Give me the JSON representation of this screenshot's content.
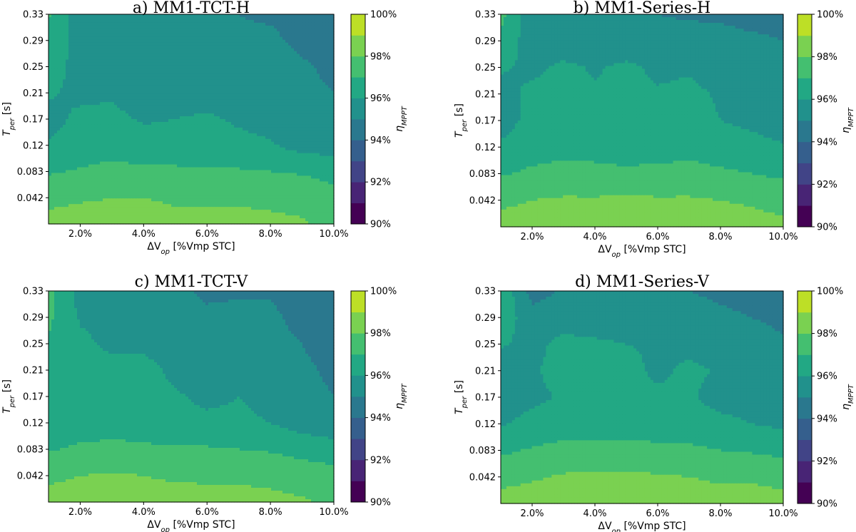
{
  "chart_data": [
    {
      "type": "heatmap",
      "title": "a) MM1-TCT-H",
      "xlabel": "ΔV",
      "xlabel_sub": "op",
      "xlabel_unit": " [%Vmp STC]",
      "ylabel": "T",
      "ylabel_sub": "per",
      "ylabel_unit": " [s]",
      "x": [
        1,
        2,
        3,
        4,
        5,
        6,
        7,
        8,
        9,
        10
      ],
      "y": [
        0.021,
        0.042,
        0.083,
        0.12,
        0.17,
        0.21,
        0.25,
        0.29,
        0.33
      ],
      "x_ticks": [
        {
          "v": 2,
          "label": "2.0%"
        },
        {
          "v": 4,
          "label": "4.0%"
        },
        {
          "v": 6,
          "label": "6.0%"
        },
        {
          "v": 8,
          "label": "8.0%"
        },
        {
          "v": 10,
          "label": "10.0%"
        }
      ],
      "y_ticks": [
        "0.042",
        "0.083",
        "0.12",
        "0.17",
        "0.21",
        "0.25",
        "0.29",
        "0.33"
      ],
      "z": [
        [
          98.4,
          98.4,
          98.3,
          98.3,
          98.2,
          98.2,
          98.2,
          98.2,
          98.1,
          97.7
        ],
        [
          97.7,
          97.9,
          98.0,
          98.0,
          97.9,
          97.9,
          97.9,
          97.8,
          97.7,
          97.4
        ],
        [
          96.9,
          97.1,
          97.3,
          97.2,
          97.2,
          97.1,
          97.1,
          97.0,
          96.9,
          96.6
        ],
        [
          96.1,
          96.4,
          96.6,
          96.4,
          96.3,
          96.3,
          96.2,
          96.1,
          95.6,
          95.6
        ],
        [
          95.7,
          96.2,
          96.2,
          95.9,
          96.0,
          96.1,
          95.9,
          95.7,
          95.4,
          95.1
        ],
        [
          96.1,
          95.8,
          95.9,
          95.6,
          95.7,
          95.7,
          95.8,
          95.8,
          95.3,
          95.0
        ],
        [
          96.4,
          95.7,
          95.7,
          95.8,
          95.5,
          95.5,
          95.7,
          95.8,
          95.2,
          94.7
        ],
        [
          96.9,
          95.4,
          95.3,
          95.3,
          95.2,
          95.2,
          95.2,
          95.3,
          94.6,
          94.4
        ],
        [
          97.1,
          95.4,
          95.3,
          95.2,
          95.1,
          95.1,
          95.0,
          94.8,
          94.4,
          94.2
        ]
      ],
      "colorbar": {
        "label": "η",
        "label_sub": "MPPT",
        "range": [
          90,
          100
        ],
        "ticks": [
          "90%",
          "92%",
          "94%",
          "96%",
          "98%",
          "100%"
        ]
      }
    },
    {
      "type": "heatmap",
      "title": "b) MM1-Series-H",
      "xlabel": "ΔV",
      "xlabel_sub": "op",
      "xlabel_unit": " [%Vmp STC]",
      "ylabel": "T",
      "ylabel_sub": "per",
      "ylabel_unit": " [s]",
      "x": [
        1,
        2,
        3,
        4,
        5,
        6,
        7,
        8,
        9,
        10
      ],
      "y": [
        0.021,
        0.042,
        0.083,
        0.12,
        0.17,
        0.21,
        0.25,
        0.29,
        0.33
      ],
      "x_ticks": [
        {
          "v": 2,
          "label": "2.0%"
        },
        {
          "v": 4,
          "label": "4.0%"
        },
        {
          "v": 6,
          "label": "6.0%"
        },
        {
          "v": 8,
          "label": "8.0%"
        },
        {
          "v": 10,
          "label": "10.0%"
        }
      ],
      "y_ticks": [
        "0.042",
        "0.083",
        "0.12",
        "0.17",
        "0.21",
        "0.25",
        "0.29",
        "0.33"
      ],
      "z": [
        [
          98.4,
          98.4,
          98.4,
          98.4,
          98.4,
          98.4,
          98.3,
          98.3,
          98.3,
          98.2
        ],
        [
          97.8,
          98.0,
          98.1,
          98.1,
          98.2,
          98.1,
          98.1,
          98.0,
          97.9,
          97.7
        ],
        [
          96.9,
          97.2,
          97.4,
          97.3,
          97.2,
          97.3,
          97.4,
          97.2,
          97.0,
          96.8
        ],
        [
          96.1,
          96.5,
          96.6,
          96.6,
          96.5,
          96.5,
          96.6,
          96.4,
          96.3,
          96.1
        ],
        [
          95.7,
          96.2,
          96.3,
          96.2,
          96.2,
          96.2,
          96.3,
          96.0,
          95.8,
          95.5
        ],
        [
          95.7,
          96.2,
          96.3,
          96.1,
          96.3,
          96.1,
          96.2,
          95.9,
          95.6,
          95.4
        ],
        [
          96.1,
          95.8,
          96.2,
          95.9,
          96.2,
          95.8,
          95.9,
          95.6,
          95.5,
          95.3
        ],
        [
          96.8,
          95.4,
          95.4,
          95.4,
          95.3,
          95.3,
          95.3,
          95.2,
          95.1,
          95.0
        ],
        [
          97.3,
          95.3,
          95.2,
          95.1,
          95.1,
          95.0,
          94.9,
          94.9,
          94.8,
          94.8
        ]
      ],
      "colorbar": {
        "label": "η",
        "label_sub": "MPPT",
        "range": [
          90,
          100
        ],
        "ticks": [
          "90%",
          "92%",
          "94%",
          "96%",
          "98%",
          "100%"
        ]
      }
    },
    {
      "type": "heatmap",
      "title": "c) MM1-TCT-V",
      "xlabel": "ΔV",
      "xlabel_sub": "op",
      "xlabel_unit": " [%Vmp STC]",
      "ylabel": "T",
      "ylabel_sub": "per",
      "ylabel_unit": " [s]",
      "x": [
        1,
        2,
        3,
        4,
        5,
        6,
        7,
        8,
        9,
        10
      ],
      "y": [
        0.021,
        0.042,
        0.083,
        0.12,
        0.17,
        0.21,
        0.25,
        0.29,
        0.33
      ],
      "x_ticks": [
        {
          "v": 2,
          "label": "2.0%"
        },
        {
          "v": 4,
          "label": "4.0%"
        },
        {
          "v": 6,
          "label": "6.0%"
        },
        {
          "v": 8,
          "label": "8.0%"
        },
        {
          "v": 10,
          "label": "10.0%"
        }
      ],
      "y_ticks": [
        "0.042",
        "0.083",
        "0.12",
        "0.17",
        "0.21",
        "0.25",
        "0.29",
        "0.33"
      ],
      "z": [
        [
          98.4,
          98.4,
          98.4,
          98.3,
          98.3,
          98.2,
          98.2,
          98.2,
          98.1,
          97.8
        ],
        [
          97.8,
          98.0,
          98.1,
          98.0,
          97.9,
          97.9,
          97.9,
          97.8,
          97.6,
          97.4
        ],
        [
          96.9,
          97.2,
          97.3,
          97.2,
          97.1,
          97.1,
          97.0,
          96.9,
          96.6,
          96.4
        ],
        [
          96.2,
          96.4,
          96.5,
          96.4,
          96.2,
          96.2,
          96.2,
          96.0,
          95.6,
          95.4
        ],
        [
          96.6,
          96.4,
          96.3,
          96.3,
          96.1,
          95.8,
          96.0,
          95.7,
          95.3,
          95.0
        ],
        [
          96.5,
          96.3,
          96.3,
          96.3,
          95.8,
          95.5,
          95.7,
          95.5,
          95.2,
          94.8
        ],
        [
          96.9,
          96.2,
          95.8,
          95.8,
          95.5,
          95.3,
          95.5,
          95.3,
          95.0,
          94.5
        ],
        [
          97.2,
          95.9,
          95.7,
          95.6,
          95.3,
          95.1,
          95.2,
          95.2,
          94.7,
          94.3
        ],
        [
          97.3,
          95.6,
          95.4,
          95.3,
          95.1,
          94.9,
          94.9,
          94.9,
          94.5,
          94.2
        ]
      ],
      "colorbar": {
        "label": "η",
        "label_sub": "MPPT",
        "range": [
          90,
          100
        ],
        "ticks": [
          "90%",
          "92%",
          "94%",
          "96%",
          "98%",
          "100%"
        ]
      }
    },
    {
      "type": "heatmap",
      "title": "d) MM1-Series-V",
      "xlabel": "ΔV",
      "xlabel_sub": "op",
      "xlabel_unit": " [%Vmp STC]",
      "ylabel": "T",
      "ylabel_sub": "per",
      "ylabel_unit": " [s]",
      "x": [
        1,
        2,
        3,
        4,
        5,
        6,
        7,
        8,
        9,
        10
      ],
      "y": [
        0.021,
        0.042,
        0.083,
        0.12,
        0.17,
        0.21,
        0.25,
        0.29,
        0.33
      ],
      "x_ticks": [
        {
          "v": 2,
          "label": "2.0%"
        },
        {
          "v": 4,
          "label": "4.0%"
        },
        {
          "v": 6,
          "label": "6.0%"
        },
        {
          "v": 8,
          "label": "8.0%"
        },
        {
          "v": 10,
          "label": "10.0%"
        }
      ],
      "y_ticks": [
        "0.042",
        "0.083",
        "0.12",
        "0.17",
        "0.21",
        "0.25",
        "0.29",
        "0.33"
      ],
      "z": [
        [
          98.4,
          98.4,
          98.4,
          98.4,
          98.4,
          98.4,
          98.3,
          98.3,
          98.3,
          98.2
        ],
        [
          97.7,
          97.9,
          98.1,
          98.2,
          98.2,
          98.1,
          98.0,
          97.9,
          97.9,
          97.8
        ],
        [
          96.8,
          97.1,
          97.3,
          97.3,
          97.3,
          97.2,
          97.2,
          97.0,
          96.9,
          96.7
        ],
        [
          95.9,
          96.3,
          96.5,
          96.6,
          96.6,
          96.5,
          96.4,
          96.2,
          96.0,
          95.8
        ],
        [
          95.4,
          95.8,
          96.1,
          96.3,
          96.4,
          96.2,
          96.1,
          95.7,
          95.7,
          95.5
        ],
        [
          95.4,
          95.9,
          96.3,
          96.4,
          96.3,
          95.8,
          96.2,
          95.9,
          95.6,
          95.4
        ],
        [
          96.1,
          95.7,
          96.3,
          96.2,
          96.0,
          95.9,
          95.7,
          95.6,
          95.4,
          95.1
        ],
        [
          96.6,
          95.4,
          95.5,
          95.3,
          95.3,
          95.2,
          95.2,
          95.1,
          95.0,
          94.8
        ],
        [
          96.9,
          94.6,
          95.1,
          95.2,
          95.1,
          95.1,
          95.0,
          94.9,
          94.8,
          94.7
        ]
      ],
      "colorbar": {
        "label": "η",
        "label_sub": "MPPT",
        "range": [
          90,
          100
        ],
        "ticks": [
          "90%",
          "92%",
          "94%",
          "96%",
          "98%",
          "100%"
        ]
      }
    }
  ],
  "colormap": [
    "#440154",
    "#482475",
    "#414487",
    "#355f8d",
    "#2a788e",
    "#21918c",
    "#22a884",
    "#44bf70",
    "#7ad151",
    "#bddf26",
    "#dde318"
  ]
}
